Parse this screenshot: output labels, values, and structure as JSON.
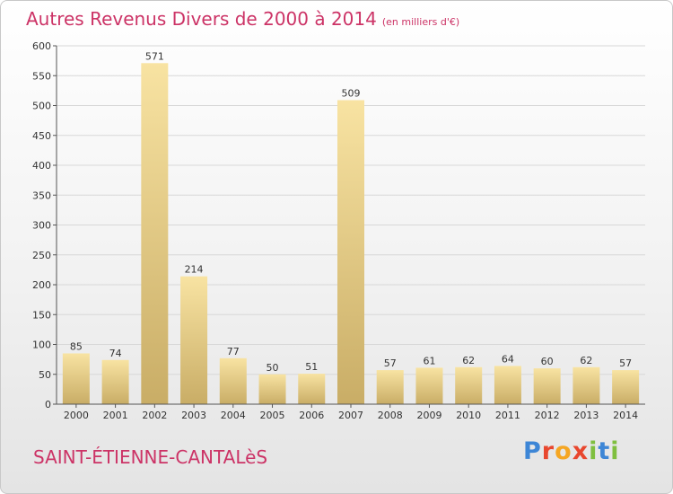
{
  "title": "Autres Revenus Divers de 2000 à 2014",
  "title_unit": "(en milliers d'€)",
  "commune": "SAINT-ÉTIENNE-CANTALèS",
  "logo": {
    "text": "Proxiti",
    "letter_colors": [
      "#3d86d6",
      "#e8472e",
      "#f5a623",
      "#e8472e",
      "#7fbf3f",
      "#3d86d6",
      "#7fbf3f"
    ]
  },
  "colors": {
    "title": "#cc3366",
    "bar_light": "#f8e3a2",
    "bar_dark": "#c9ad66",
    "grid": "#d8d8d8",
    "axis": "#555555"
  },
  "chart_data": {
    "type": "bar",
    "categories": [
      "2000",
      "2001",
      "2002",
      "2003",
      "2004",
      "2005",
      "2006",
      "2007",
      "2008",
      "2009",
      "2010",
      "2011",
      "2012",
      "2013",
      "2014"
    ],
    "values": [
      85,
      74,
      571,
      214,
      77,
      50,
      51,
      509,
      57,
      61,
      62,
      64,
      60,
      62,
      57
    ],
    "ylim": [
      0,
      600
    ],
    "yticks": [
      0,
      50,
      100,
      150,
      200,
      250,
      300,
      350,
      400,
      450,
      500,
      550,
      600
    ],
    "grid": true
  }
}
